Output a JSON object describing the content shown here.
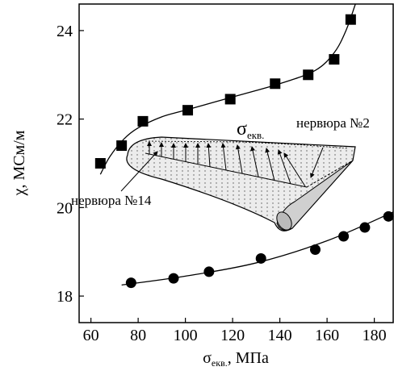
{
  "chart_data": {
    "type": "scatter",
    "x_label": {
      "symbol": "σ",
      "subscript": "екв.",
      "text": ", МПа"
    },
    "y_label": "χ, МСм/м",
    "xlim": [
      55,
      188
    ],
    "ylim": [
      17.4,
      24.6
    ],
    "xticks": [
      60,
      80,
      100,
      120,
      140,
      160,
      180
    ],
    "yticks": [
      18,
      20,
      22,
      24
    ],
    "series": [
      {
        "marker": "square",
        "color": "#000000",
        "x": [
          64,
          73,
          82,
          101,
          119,
          138,
          152,
          163,
          170
        ],
        "values": [
          21.0,
          21.4,
          21.95,
          22.2,
          22.45,
          22.8,
          23.0,
          23.35,
          24.25
        ]
      },
      {
        "marker": "circle",
        "color": "#000000",
        "x": [
          77,
          95,
          110,
          132,
          155,
          167,
          176,
          186
        ],
        "values": [
          18.3,
          18.4,
          18.55,
          18.85,
          19.05,
          19.35,
          19.55,
          19.8
        ]
      },
      {
        "marker": "none",
        "color": "#000000",
        "x": [
          64,
          68,
          74,
          80,
          90,
          100,
          120,
          140,
          155,
          163,
          168,
          172
        ],
        "values": [
          20.75,
          21.15,
          21.55,
          21.8,
          22.05,
          22.2,
          22.5,
          22.8,
          23.1,
          23.5,
          24.0,
          24.6
        ]
      },
      {
        "marker": "none",
        "color": "#000000",
        "x": [
          73,
          100,
          130,
          160,
          188
        ],
        "values": [
          18.25,
          18.45,
          18.75,
          19.25,
          19.9
        ]
      }
    ],
    "annotations": {
      "sigma": {
        "symbol": "σ",
        "subscript": "екв."
      },
      "rib2": "нервюра №2",
      "rib14": "нервюра №14"
    }
  }
}
